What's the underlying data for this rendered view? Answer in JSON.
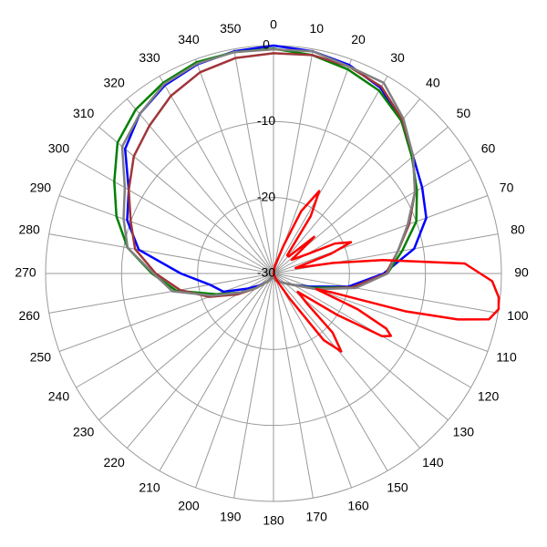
{
  "chart_data": {
    "type": "polar",
    "rlim": [
      -30,
      0
    ],
    "rticks": [
      0,
      -10,
      -20,
      -30
    ],
    "thetaticks": [
      0,
      10,
      20,
      30,
      40,
      50,
      60,
      70,
      80,
      90,
      100,
      110,
      120,
      130,
      140,
      150,
      160,
      170,
      180,
      190,
      200,
      210,
      220,
      230,
      240,
      250,
      260,
      270,
      280,
      290,
      300,
      310,
      320,
      330,
      340,
      350
    ],
    "direction": "clockwise",
    "zero_location": "top",
    "grid": true,
    "theta": [
      0,
      10,
      20,
      30,
      40,
      50,
      60,
      70,
      80,
      90,
      100,
      110,
      120,
      130,
      140,
      150,
      160,
      170,
      180,
      190,
      200,
      210,
      220,
      230,
      240,
      250,
      260,
      270,
      280,
      290,
      300,
      310,
      320,
      330,
      340,
      350
    ],
    "series": [
      {
        "color": "#0000ff",
        "values": [
          0,
          -0.3,
          -0.8,
          -1.8,
          -3.8,
          -6,
          -7.4,
          -8.6,
          -11.2,
          -15.5,
          -20,
          -25,
          -27,
          -28,
          -28.5,
          -29,
          -29,
          -29.5,
          -29.5,
          -29.5,
          -29.5,
          -29,
          -28.5,
          -27.5,
          -26,
          -23,
          -21.5,
          -17.8,
          -12,
          -9.5,
          -8,
          -4.5,
          -2.6,
          -1.4,
          -0.7,
          -0.3
        ]
      },
      {
        "color": "#008000",
        "values": [
          -0.4,
          -0.8,
          -1.4,
          -2.2,
          -3.8,
          -6.2,
          -8.2,
          -10,
          -12.8,
          -15,
          -19.5,
          -24.5,
          -27,
          -28,
          -28.5,
          -29,
          -29,
          -29.5,
          -29.5,
          -29.5,
          -29.5,
          -29,
          -28.5,
          -27,
          -25,
          -22,
          -17,
          -14,
          -10.5,
          -8,
          -5.8,
          -3.2,
          -1.8,
          -1,
          -0.4,
          -0.4
        ]
      },
      {
        "color": "#a0353a",
        "values": [
          -1,
          -0.8,
          -1,
          -1.6,
          -3.6,
          -6,
          -8.5,
          -11,
          -13.4,
          -15.2,
          -19.5,
          -24,
          -27,
          -28,
          -28.5,
          -29,
          -29,
          -29.5,
          -29.5,
          -29.5,
          -29.5,
          -29,
          -28.5,
          -27,
          -24.5,
          -21,
          -17.5,
          -14.5,
          -11.5,
          -10,
          -8,
          -6,
          -4.6,
          -3,
          -1.8,
          -1.2
        ]
      },
      {
        "color": "#808080",
        "values": [
          -0.5,
          -0.3,
          -1,
          -1,
          -3.4,
          -6,
          -8.5,
          -11.2,
          -13.4,
          -15,
          -19,
          -24,
          -27,
          -28,
          -28.5,
          -29,
          -29,
          -29.5,
          -29.5,
          -29.5,
          -29.5,
          -29,
          -28.5,
          -27,
          -25,
          -21.5,
          -16.5,
          -14.2,
          -10.5,
          -9,
          -7.4,
          -4,
          -2.6,
          -1.2,
          -0.6,
          -0.4
        ]
      },
      {
        "color": "#ff0000",
        "theta": [
          0,
          10,
          20,
          24,
          29,
          33,
          37,
          42,
          48,
          53,
          60,
          64,
          68,
          71,
          76,
          80,
          83,
          87,
          92,
          96,
          99,
          102,
          104,
          106,
          108,
          110,
          113,
          116,
          118,
          120,
          123,
          127,
          132,
          135,
          139,
          143,
          147,
          155,
          170,
          200,
          260,
          330
        ],
        "values": [
          -30,
          -29,
          -26,
          -21,
          -17.6,
          -21,
          -27,
          -27,
          -22.8,
          -27,
          -25,
          -21,
          -19,
          -22,
          -27,
          -22,
          -15.5,
          -4.8,
          -1.2,
          -0.2,
          0,
          -1,
          -5,
          -12,
          -22,
          -24,
          -18,
          -13.5,
          -12.5,
          -13.5,
          -20,
          -26,
          -24,
          -19,
          -16.4,
          -19,
          -26,
          -29,
          -30,
          -30,
          -30,
          -30
        ]
      }
    ]
  }
}
